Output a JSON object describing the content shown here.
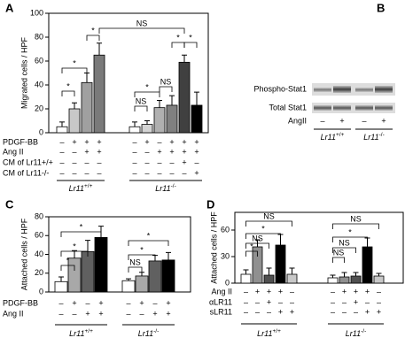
{
  "chart_data": [
    {
      "type": "bar",
      "label": "A",
      "y_label": "Migrated cells / HPF",
      "ylim": [
        0,
        100
      ],
      "yticks": [
        0,
        20,
        40,
        60,
        80,
        100
      ],
      "groups": [
        {
          "name": "Lr11",
          "sup": "+/+",
          "values": [
            5,
            20,
            42,
            65
          ],
          "errors": [
            4,
            5,
            8,
            10
          ],
          "colors": [
            "#ffffff",
            "#c8c8c8",
            "#a0a0a0",
            "#7a7a7a"
          ]
        },
        {
          "name": "Lr11",
          "sup": "-/-",
          "values": [
            5,
            7,
            21,
            23,
            59,
            23
          ],
          "errors": [
            4,
            3,
            6,
            8,
            6,
            11
          ],
          "colors": [
            "#ffffff",
            "#d4d4d4",
            "#b0b0b0",
            "#808080",
            "#404040",
            "#000000"
          ]
        }
      ],
      "conditions": [
        {
          "name": "PDGF-BB",
          "signs": [
            "–",
            "+",
            "+",
            "+",
            "–",
            "+",
            "–",
            "+",
            "+",
            "+"
          ]
        },
        {
          "name": "Ang II",
          "signs": [
            "–",
            "–",
            "+",
            "+",
            "–",
            "–",
            "+",
            "+",
            "+",
            "+"
          ]
        },
        {
          "name": "CM of Lr11+/+",
          "signs": [
            "–",
            "–",
            "–",
            "–",
            "–",
            "–",
            "–",
            "–",
            "+",
            "–"
          ]
        },
        {
          "name": "CM of Lr11-/-",
          "signs": [
            "–",
            "–",
            "–",
            "–",
            "–",
            "–",
            "–",
            "–",
            "–",
            "+"
          ]
        }
      ],
      "annotations": [
        "*",
        "*",
        "*",
        "NS",
        "*",
        "NS",
        "NS",
        "*",
        "*"
      ]
    },
    {
      "type": "bar",
      "label": "C",
      "y_label": "Attached cells / HPF",
      "ylim": [
        0,
        80
      ],
      "yticks": [
        0,
        20,
        40,
        60,
        80
      ],
      "groups": [
        {
          "name": "Lr11",
          "sup": "+/+",
          "values": [
            11,
            36,
            43,
            58
          ],
          "errors": [
            5,
            8,
            12,
            12
          ],
          "colors": [
            "#ffffff",
            "#a8a8a8",
            "#606060",
            "#000000"
          ]
        },
        {
          "name": "Lr11",
          "sup": "-/-",
          "values": [
            12,
            17,
            33,
            34
          ],
          "errors": [
            2,
            4,
            6,
            8
          ],
          "colors": [
            "#ffffff",
            "#a8a8a8",
            "#606060",
            "#000000"
          ]
        }
      ],
      "conditions": [
        {
          "name": "PDGF-BB",
          "signs": [
            "–",
            "+",
            "–",
            "+",
            "–",
            "+",
            "–",
            "+"
          ]
        },
        {
          "name": "Ang II",
          "signs": [
            "–",
            "–",
            "+",
            "+",
            "–",
            "–",
            "+",
            "+"
          ]
        }
      ],
      "annotations": [
        "*",
        "*",
        "*",
        "NS",
        "*",
        "*"
      ]
    },
    {
      "type": "bar",
      "label": "D",
      "y_label": "Attached cells / HPF",
      "ylim": [
        0,
        80
      ],
      "yticks": [
        0,
        30,
        60
      ],
      "groups": [
        {
          "name": "Lr11",
          "sup": "+/+",
          "values": [
            10,
            41,
            9,
            43,
            10
          ],
          "errors": [
            5,
            8,
            8,
            12,
            7
          ],
          "colors": [
            "#ffffff",
            "#909090",
            "#505050",
            "#000000",
            "#c8c8c8"
          ]
        },
        {
          "name": "Lr11",
          "sup": "-/-",
          "values": [
            6,
            7,
            8,
            41,
            8
          ],
          "errors": [
            3,
            5,
            4,
            10,
            3
          ],
          "colors": [
            "#ffffff",
            "#909090",
            "#505050",
            "#000000",
            "#c8c8c8"
          ]
        }
      ],
      "conditions": [
        {
          "name": "Ang II",
          "signs": [
            "–",
            "+",
            "+",
            "+",
            "–",
            "–",
            "+",
            "+",
            "+",
            "–"
          ]
        },
        {
          "name": "αLR11",
          "signs": [
            "–",
            "–",
            "+",
            "–",
            "–",
            "–",
            "–",
            "+",
            "–",
            "–"
          ]
        },
        {
          "name": "sLR11",
          "signs": [
            "–",
            "–",
            "–",
            "+",
            "+",
            "–",
            "–",
            "–",
            "+",
            "+"
          ]
        }
      ],
      "annotations": [
        "NS",
        "*",
        "NS",
        "*",
        "NS",
        "*",
        "NS",
        "NS"
      ]
    }
  ],
  "blot": {
    "label": "B",
    "rows": [
      "Phospho-Stat1",
      "Total Stat1"
    ],
    "treatment": {
      "name": "AngII",
      "signs": [
        "–",
        "+",
        "–",
        "+"
      ]
    },
    "groups": [
      {
        "name": "Lr11",
        "sup": "+/+"
      },
      {
        "name": "Lr11",
        "sup": "-/-"
      }
    ]
  }
}
